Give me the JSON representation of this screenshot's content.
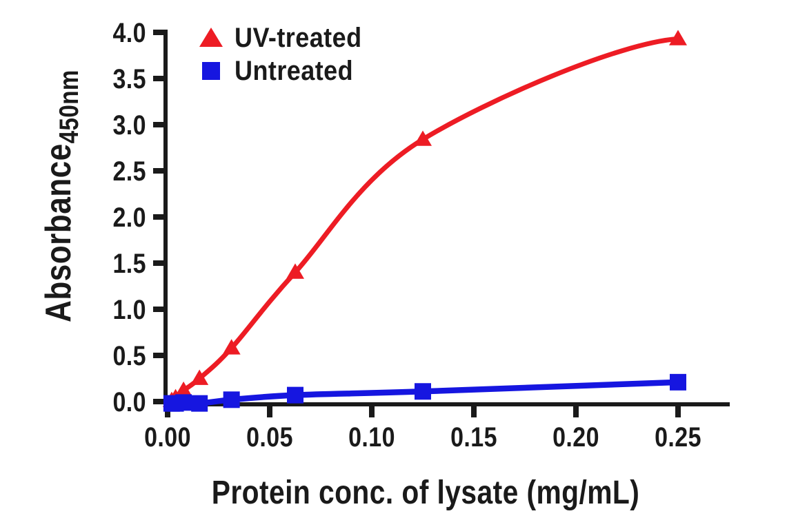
{
  "chart_data": {
    "type": "line",
    "title": "",
    "xlabel": "Protein conc. of lysate (mg/mL)",
    "ylabel": "Absorbance",
    "ylabel_subscript": "450nm",
    "xlim": [
      0,
      0.25
    ],
    "ylim": [
      0,
      4.0
    ],
    "grid": false,
    "legend_position": "top-left-inside",
    "background_color": "#ffffff",
    "text_color": "#1a1a1a",
    "axis_color": "#1a1a1a",
    "x_tick_values": [
      0,
      0.05,
      0.1,
      0.15,
      0.2,
      0.25
    ],
    "x_tick_labels": [
      "0.00",
      "0.05",
      "0.10",
      "0.15",
      "0.20",
      "0.25"
    ],
    "y_tick_values": [
      0,
      0.5,
      1.0,
      1.5,
      2.0,
      2.5,
      3.0,
      3.5,
      4.0
    ],
    "y_tick_labels": [
      "0.0",
      "0.5",
      "1.0",
      "1.5",
      "2.0",
      "2.5",
      "3.0",
      "3.5",
      "4.0"
    ],
    "x": [
      0.002,
      0.0039,
      0.0078,
      0.0156,
      0.0313,
      0.0625,
      0.125,
      0.25
    ],
    "series": [
      {
        "name": "UV-treated",
        "color": "#ed1c24",
        "marker": "triangle",
        "values": [
          0.01,
          0.04,
          0.12,
          0.25,
          0.58,
          1.4,
          2.84,
          3.93
        ],
        "curve_flattens_at_end": true
      },
      {
        "name": "Untreated",
        "color": "#1616e0",
        "marker": "square",
        "values": [
          -0.02,
          -0.02,
          -0.01,
          -0.02,
          0.02,
          0.07,
          0.11,
          0.21
        ],
        "curve_flattens_at_end": false
      }
    ]
  }
}
